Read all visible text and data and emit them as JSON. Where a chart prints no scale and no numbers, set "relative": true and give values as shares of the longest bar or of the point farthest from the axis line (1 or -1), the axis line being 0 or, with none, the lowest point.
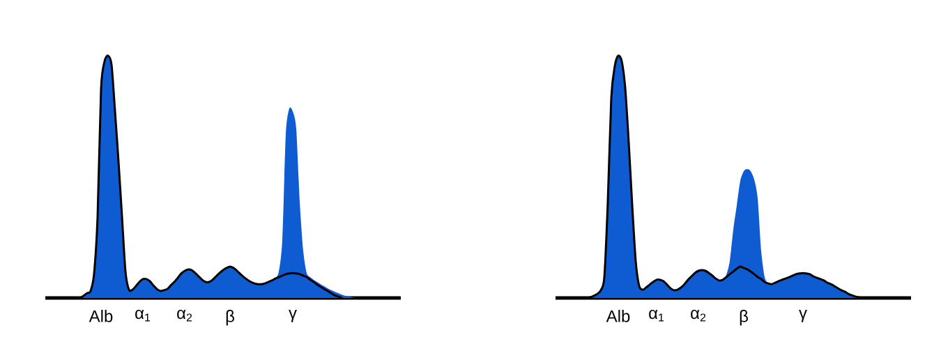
{
  "chart_data": [
    {
      "type": "area",
      "relative": true,
      "categories": [
        null,
        null,
        null,
        null,
        null,
        null,
        null,
        null,
        null,
        null,
        null,
        null,
        null,
        null,
        null,
        null,
        "Alb",
        null,
        null,
        null,
        null,
        null,
        null,
        null,
        null,
        null,
        null,
        null,
        "α$_{1}$",
        null,
        null,
        null,
        null,
        null,
        null,
        null,
        null,
        null,
        null,
        null,
        "α$_{2}$",
        null,
        null,
        null,
        null,
        null,
        null,
        null,
        null,
        null,
        null,
        null,
        null,
        "β",
        null,
        null,
        null,
        null,
        null,
        null,
        null,
        null,
        null,
        null,
        null,
        null,
        null,
        null,
        null,
        null,
        null,
        "γ",
        null,
        null,
        null,
        null,
        null,
        null,
        null,
        null,
        null,
        null,
        null,
        null,
        null,
        null,
        null,
        null,
        null,
        null,
        null,
        null,
        null,
        null,
        null,
        null,
        null,
        null,
        null,
        null,
        null,
        null,
        null
      ],
      "series": [
        {
          "type": "area",
          "color": "#0f5cd2",
          "values": [
            null,
            null,
            null,
            null,
            null,
            null,
            null,
            null,
            null,
            null,
            0,
            0.009,
            0.02,
            0.029,
            0.101,
            0.336,
            0.865,
            0.977,
            1,
            0.963,
            0.77,
            0.563,
            0.336,
            0.109,
            0.034,
            0.034,
            0.049,
            0.066,
            0.078,
            0.078,
            0.069,
            0.052,
            0.037,
            0.029,
            0.032,
            0.037,
            0.052,
            0.066,
            0.083,
            0.101,
            0.112,
            0.118,
            0.115,
            0.103,
            0.089,
            0.075,
            0.066,
            0.066,
            0.075,
            0.089,
            0.103,
            0.115,
            0.124,
            0.129,
            0.124,
            0.112,
            0.098,
            0.086,
            0.075,
            0.066,
            0.06,
            0.057,
            0.057,
            0.06,
            0.066,
            0.072,
            0.08,
            0.109,
            0.239,
            0.675,
            0.782,
            0.77,
            0.698,
            0.397,
            0.195,
            0.103,
            0.086,
            0.075,
            0.066,
            0.057,
            0.049,
            0.04,
            0.032,
            0.026,
            0.02,
            0.014,
            0.009,
            0.006,
            0.003,
            0,
            null,
            null,
            null,
            null,
            null,
            null,
            null,
            null,
            null,
            null,
            null,
            null,
            null
          ]
        },
        {
          "type": "line",
          "color": "#000000",
          "values": [
            null,
            null,
            null,
            null,
            null,
            null,
            null,
            null,
            null,
            null,
            0,
            0.009,
            0.02,
            0.029,
            0.101,
            0.336,
            0.865,
            0.977,
            1,
            0.963,
            0.77,
            0.563,
            0.336,
            0.109,
            0.034,
            0.034,
            0.049,
            0.066,
            0.078,
            0.078,
            0.069,
            0.052,
            0.037,
            0.029,
            0.032,
            0.037,
            0.052,
            0.066,
            0.083,
            0.101,
            0.112,
            0.118,
            0.115,
            0.103,
            0.089,
            0.075,
            0.066,
            0.066,
            0.075,
            0.089,
            0.103,
            0.115,
            0.124,
            0.129,
            0.124,
            0.112,
            0.098,
            0.086,
            0.075,
            0.066,
            0.06,
            0.057,
            0.057,
            0.06,
            0.066,
            0.072,
            0.08,
            0.086,
            0.092,
            0.098,
            0.101,
            0.103,
            0.101,
            0.098,
            0.092,
            0.086,
            0.075,
            0.066,
            0.055,
            0.046,
            0.037,
            0.029,
            0.02,
            0.011,
            0.006,
            0,
            null,
            null,
            null,
            null,
            null,
            null,
            null,
            null,
            null,
            null,
            null,
            null,
            null,
            null,
            null,
            null,
            null
          ]
        }
      ]
    },
    {
      "type": "area",
      "relative": true,
      "categories": [
        null,
        null,
        null,
        null,
        null,
        null,
        null,
        null,
        null,
        null,
        null,
        null,
        null,
        null,
        null,
        null,
        null,
        null,
        "Alb",
        null,
        null,
        null,
        null,
        null,
        null,
        null,
        null,
        null,
        null,
        "α$_{1}$",
        null,
        null,
        null,
        null,
        null,
        null,
        null,
        null,
        null,
        null,
        null,
        "α$_{2}$",
        null,
        null,
        null,
        null,
        null,
        null,
        null,
        null,
        null,
        null,
        null,
        null,
        "β",
        null,
        null,
        null,
        null,
        null,
        null,
        null,
        null,
        null,
        null,
        null,
        null,
        null,
        null,
        null,
        null,
        "γ",
        null,
        null,
        null,
        null,
        null,
        null,
        null,
        null,
        null,
        null,
        null,
        null,
        null,
        null,
        null,
        null,
        null,
        null,
        null,
        null,
        null,
        null,
        null,
        null,
        null,
        null,
        null,
        null,
        null,
        null,
        null
      ],
      "series": [
        {
          "type": "area",
          "color": "#0f5cd2",
          "values": [
            null,
            null,
            null,
            null,
            null,
            null,
            null,
            null,
            null,
            null,
            0.003,
            0.009,
            0.017,
            0.032,
            0.086,
            0.397,
            0.828,
            0.957,
            1,
            0.977,
            0.865,
            0.641,
            0.382,
            0.152,
            0.049,
            0.034,
            0.043,
            0.055,
            0.066,
            0.075,
            0.075,
            0.069,
            0.055,
            0.04,
            0.032,
            0.034,
            0.043,
            0.057,
            0.075,
            0.089,
            0.103,
            0.112,
            0.115,
            0.112,
            0.103,
            0.092,
            0.08,
            0.072,
            0.078,
            0.095,
            0.152,
            0.282,
            0.382,
            0.483,
            0.523,
            0.532,
            0.523,
            0.489,
            0.411,
            0.195,
            0.086,
            0.06,
            0.057,
            0.063,
            0.069,
            0.075,
            0.08,
            0.086,
            0.092,
            0.098,
            0.101,
            0.103,
            0.101,
            0.098,
            0.089,
            0.083,
            0.078,
            0.072,
            0.063,
            0.057,
            0.049,
            0.04,
            0.032,
            0.026,
            0.017,
            0.011,
            0.006,
            0.003,
            0,
            null,
            null,
            null,
            null,
            null,
            null,
            null,
            null,
            null,
            null,
            null,
            null,
            null,
            null
          ]
        },
        {
          "type": "line",
          "color": "#000000",
          "values": [
            null,
            null,
            null,
            null,
            null,
            null,
            null,
            null,
            null,
            0,
            0.003,
            0.009,
            0.017,
            0.032,
            0.086,
            0.397,
            0.828,
            0.957,
            1,
            0.977,
            0.865,
            0.641,
            0.382,
            0.152,
            0.049,
            0.034,
            0.043,
            0.055,
            0.066,
            0.075,
            0.075,
            0.069,
            0.055,
            0.04,
            0.032,
            0.034,
            0.043,
            0.057,
            0.075,
            0.089,
            0.103,
            0.112,
            0.115,
            0.112,
            0.103,
            0.092,
            0.08,
            0.072,
            0.075,
            0.086,
            0.098,
            0.109,
            0.121,
            0.129,
            0.124,
            0.118,
            0.109,
            0.098,
            0.086,
            0.078,
            0.066,
            0.06,
            0.057,
            0.063,
            0.069,
            0.075,
            0.08,
            0.086,
            0.092,
            0.098,
            0.101,
            0.103,
            0.101,
            0.098,
            0.089,
            0.083,
            0.078,
            0.072,
            0.063,
            0.057,
            0.049,
            0.04,
            0.032,
            0.026,
            0.017,
            0.011,
            0.006,
            0.003,
            0,
            null,
            null,
            null,
            null,
            null,
            null,
            null,
            null,
            null,
            null,
            null,
            null,
            null,
            null
          ]
        }
      ]
    }
  ]
}
